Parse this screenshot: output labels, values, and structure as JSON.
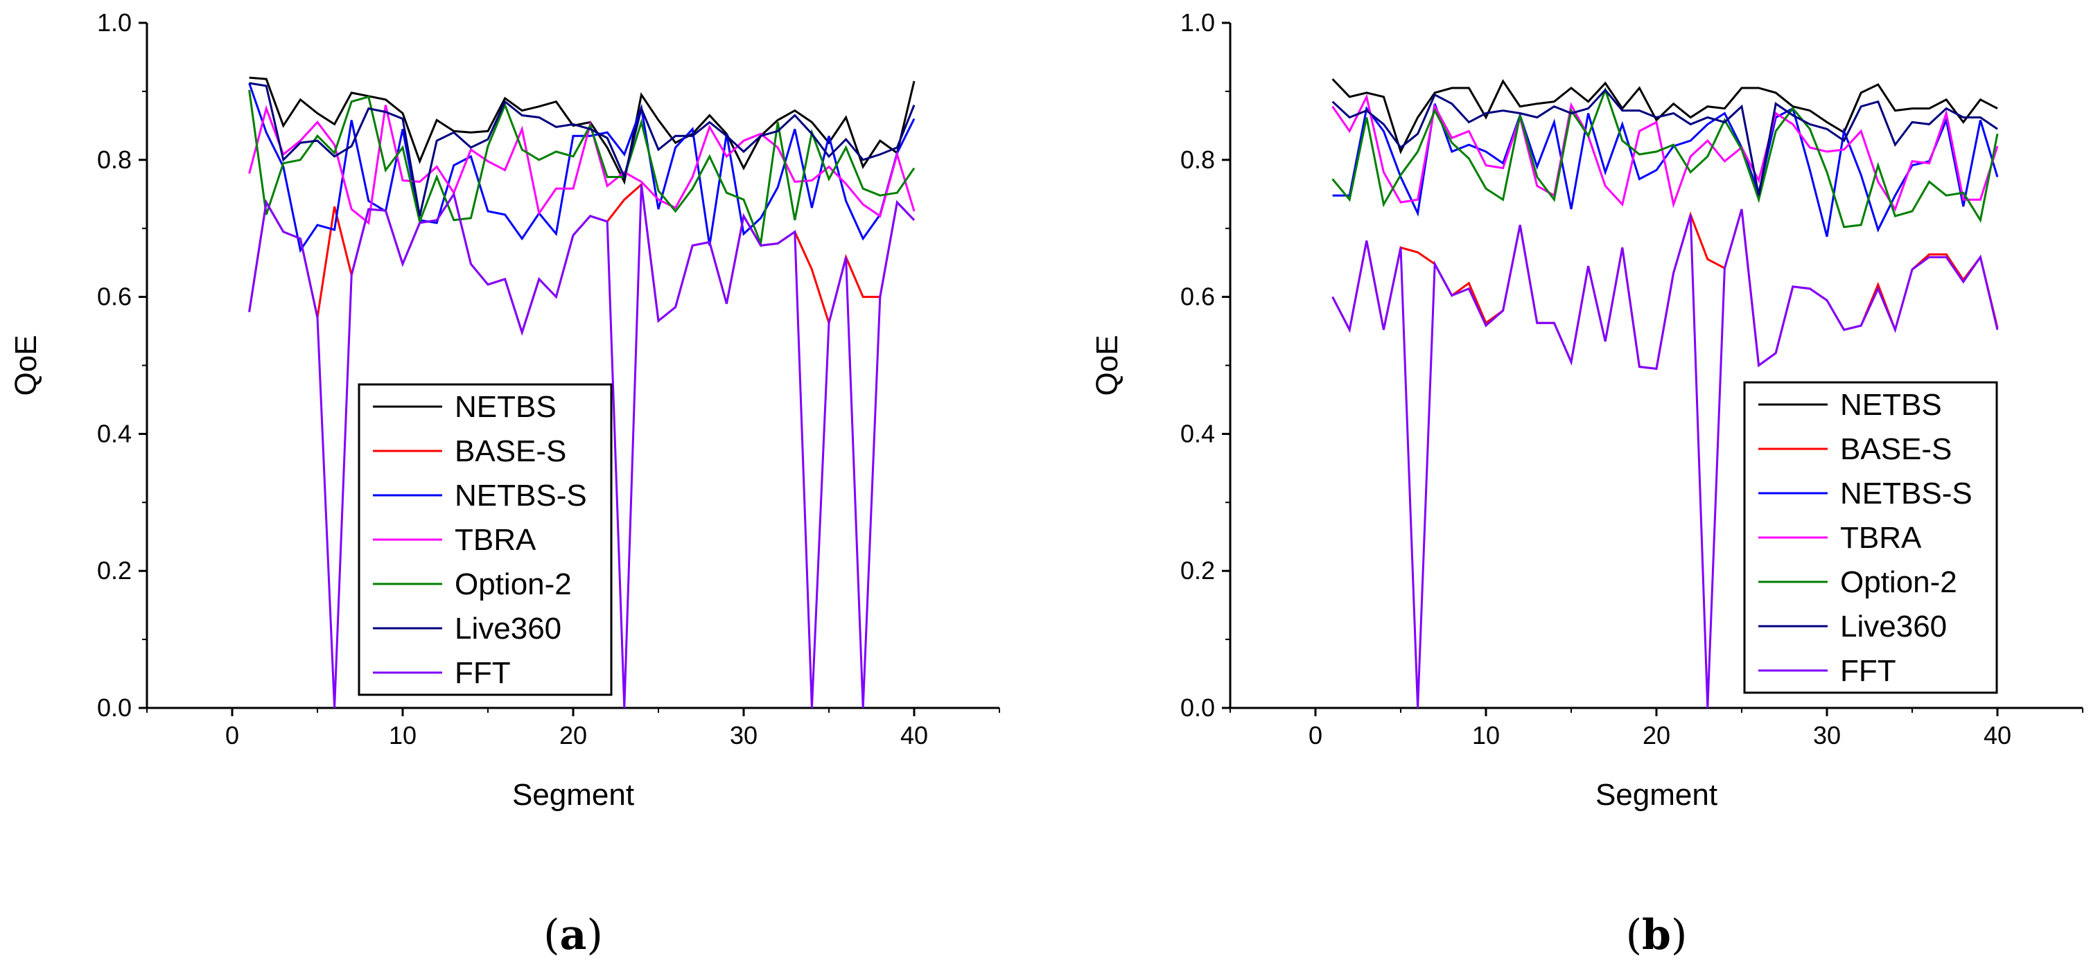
{
  "chart_data": [
    {
      "type": "line",
      "panel_label": "a",
      "xlabel": "Segment",
      "ylabel": "QoE",
      "xlim": [
        -5,
        45
      ],
      "ylim": [
        0.0,
        1.0
      ],
      "xticks": [
        0,
        10,
        20,
        30,
        40
      ],
      "yticks": [
        "0.0",
        "0.2",
        "0.4",
        "0.6",
        "0.8",
        "1.0"
      ],
      "legend_position": "lower-center",
      "x": [
        1,
        2,
        3,
        4,
        5,
        6,
        7,
        8,
        9,
        10,
        11,
        12,
        13,
        14,
        15,
        16,
        17,
        18,
        19,
        20,
        21,
        22,
        23,
        24,
        25,
        26,
        27,
        28,
        29,
        30,
        31,
        32,
        33,
        34,
        35,
        36,
        37,
        38,
        39,
        40
      ],
      "series": [
        {
          "name": "NETBS",
          "color": "#000000",
          "values": [
            0.92,
            0.918,
            0.85,
            0.888,
            0.868,
            0.852,
            0.898,
            0.893,
            0.888,
            0.868,
            0.798,
            0.858,
            0.842,
            0.84,
            0.842,
            0.89,
            0.872,
            0.878,
            0.885,
            0.85,
            0.855,
            0.818,
            0.768,
            0.895,
            0.858,
            0.825,
            0.838,
            0.865,
            0.838,
            0.788,
            0.835,
            0.858,
            0.872,
            0.855,
            0.825,
            0.862,
            0.79,
            0.828,
            0.81,
            0.915
          ]
        },
        {
          "name": "BASE-S",
          "color": "#ff0000",
          "values": [
            0.578,
            0.738,
            0.695,
            0.685,
            0.57,
            0.732,
            0.632,
            0.728,
            0.726,
            0.648,
            0.708,
            0.712,
            0.75,
            0.648,
            0.618,
            0.626,
            0.548,
            0.626,
            0.6,
            0.69,
            0.718,
            0.71,
            0.742,
            0.764,
            0.565,
            0.585,
            0.675,
            0.68,
            0.59,
            0.718,
            0.675,
            0.678,
            0.695,
            0.64,
            0.562,
            0.658,
            0.6,
            0.6,
            0.738,
            0.712
          ]
        },
        {
          "name": "NETBS-S",
          "color": "#0000ff",
          "values": [
            0.912,
            0.84,
            0.79,
            0.668,
            0.705,
            0.698,
            0.858,
            0.74,
            0.725,
            0.845,
            0.712,
            0.708,
            0.792,
            0.805,
            0.725,
            0.72,
            0.685,
            0.722,
            0.692,
            0.835,
            0.835,
            0.84,
            0.808,
            0.876,
            0.728,
            0.818,
            0.845,
            0.675,
            0.838,
            0.692,
            0.715,
            0.76,
            0.845,
            0.73,
            0.835,
            0.74,
            0.685,
            0.72,
            0.81,
            0.86
          ]
        },
        {
          "name": "TBRA",
          "color": "#ff00ff",
          "values": [
            0.78,
            0.875,
            0.808,
            0.828,
            0.855,
            0.822,
            0.728,
            0.708,
            0.88,
            0.77,
            0.768,
            0.79,
            0.752,
            0.815,
            0.798,
            0.785,
            0.845,
            0.722,
            0.758,
            0.758,
            0.852,
            0.762,
            0.782,
            0.768,
            0.742,
            0.73,
            0.775,
            0.848,
            0.805,
            0.828,
            0.838,
            0.818,
            0.768,
            0.77,
            0.79,
            0.765,
            0.735,
            0.718,
            0.808,
            0.725
          ]
        },
        {
          "name": "Option-2",
          "color": "#007f00",
          "values": [
            0.902,
            0.72,
            0.795,
            0.8,
            0.835,
            0.81,
            0.885,
            0.892,
            0.785,
            0.818,
            0.71,
            0.775,
            0.712,
            0.715,
            0.82,
            0.88,
            0.815,
            0.8,
            0.812,
            0.805,
            0.85,
            0.775,
            0.775,
            0.855,
            0.755,
            0.725,
            0.758,
            0.805,
            0.752,
            0.742,
            0.678,
            0.855,
            0.712,
            0.84,
            0.772,
            0.818,
            0.758,
            0.748,
            0.752,
            0.788
          ]
        },
        {
          "name": "Live360",
          "color": "#00007f",
          "values": [
            0.912,
            0.908,
            0.8,
            0.825,
            0.828,
            0.805,
            0.82,
            0.875,
            0.87,
            0.86,
            0.718,
            0.828,
            0.84,
            0.818,
            0.83,
            0.885,
            0.865,
            0.862,
            0.848,
            0.852,
            0.845,
            0.832,
            0.775,
            0.875,
            0.815,
            0.835,
            0.835,
            0.855,
            0.835,
            0.812,
            0.835,
            0.842,
            0.865,
            0.838,
            0.805,
            0.83,
            0.8,
            0.808,
            0.818,
            0.88
          ]
        },
        {
          "name": "FFT",
          "color": "#7f00ff",
          "values": [
            0.578,
            0.738,
            0.695,
            0.685,
            0.57,
            0.0,
            0.632,
            0.728,
            0.726,
            0.648,
            0.708,
            0.712,
            0.75,
            0.648,
            0.618,
            0.626,
            0.548,
            0.626,
            0.6,
            0.69,
            0.718,
            0.71,
            0.0,
            0.764,
            0.565,
            0.585,
            0.675,
            0.68,
            0.59,
            0.718,
            0.675,
            0.678,
            0.695,
            0.0,
            0.562,
            0.658,
            0.0,
            0.6,
            0.738,
            0.712
          ]
        }
      ]
    },
    {
      "type": "line",
      "panel_label": "b",
      "xlabel": "Segment",
      "ylabel": "QoE",
      "xlim": [
        -5,
        45
      ],
      "ylim": [
        0.0,
        1.0
      ],
      "xticks": [
        0,
        10,
        20,
        30,
        40
      ],
      "yticks": [
        "0.0",
        "0.2",
        "0.4",
        "0.6",
        "0.8",
        "1.0"
      ],
      "legend_position": "lower-right",
      "x": [
        1,
        2,
        3,
        4,
        5,
        6,
        7,
        8,
        9,
        10,
        11,
        12,
        13,
        14,
        15,
        16,
        17,
        18,
        19,
        20,
        21,
        22,
        23,
        24,
        25,
        26,
        27,
        28,
        29,
        30,
        31,
        32,
        33,
        34,
        35,
        36,
        37,
        38,
        39,
        40
      ],
      "series": [
        {
          "name": "NETBS",
          "color": "#000000",
          "values": [
            0.918,
            0.892,
            0.898,
            0.892,
            0.812,
            0.862,
            0.898,
            0.905,
            0.905,
            0.862,
            0.915,
            0.878,
            0.882,
            0.885,
            0.905,
            0.885,
            0.912,
            0.875,
            0.905,
            0.858,
            0.882,
            0.862,
            0.878,
            0.875,
            0.905,
            0.905,
            0.898,
            0.878,
            0.872,
            0.855,
            0.84,
            0.898,
            0.91,
            0.872,
            0.875,
            0.875,
            0.888,
            0.855,
            0.888,
            0.875
          ]
        },
        {
          "name": "BASE-S",
          "color": "#ff0000",
          "values": [
            0.6,
            0.552,
            0.682,
            0.552,
            0.672,
            0.665,
            0.648,
            0.602,
            0.62,
            0.562,
            0.58,
            0.705,
            0.562,
            0.562,
            0.505,
            0.645,
            0.535,
            0.672,
            0.498,
            0.495,
            0.635,
            0.72,
            0.655,
            0.642,
            0.728,
            0.5,
            0.518,
            0.615,
            0.612,
            0.595,
            0.552,
            0.558,
            0.618,
            0.552,
            0.64,
            0.662,
            0.662,
            0.625,
            0.658,
            0.555
          ]
        },
        {
          "name": "NETBS-S",
          "color": "#0000ff",
          "values": [
            0.748,
            0.748,
            0.875,
            0.842,
            0.775,
            0.722,
            0.882,
            0.812,
            0.822,
            0.812,
            0.795,
            0.865,
            0.79,
            0.855,
            0.728,
            0.868,
            0.782,
            0.852,
            0.772,
            0.785,
            0.82,
            0.828,
            0.852,
            0.868,
            0.818,
            0.752,
            0.862,
            0.875,
            0.785,
            0.688,
            0.842,
            0.778,
            0.698,
            0.748,
            0.792,
            0.798,
            0.858,
            0.732,
            0.858,
            0.775
          ]
        },
        {
          "name": "TBRA",
          "color": "#ff00ff",
          "values": [
            0.878,
            0.842,
            0.892,
            0.782,
            0.738,
            0.742,
            0.878,
            0.832,
            0.842,
            0.792,
            0.788,
            0.862,
            0.762,
            0.748,
            0.88,
            0.835,
            0.762,
            0.735,
            0.842,
            0.855,
            0.735,
            0.805,
            0.828,
            0.798,
            0.818,
            0.77,
            0.868,
            0.852,
            0.818,
            0.812,
            0.815,
            0.842,
            0.768,
            0.728,
            0.798,
            0.795,
            0.868,
            0.742,
            0.742,
            0.82
          ]
        },
        {
          "name": "Option-2",
          "color": "#007f00",
          "values": [
            0.772,
            0.742,
            0.862,
            0.735,
            0.778,
            0.812,
            0.872,
            0.825,
            0.802,
            0.758,
            0.742,
            0.865,
            0.775,
            0.742,
            0.872,
            0.835,
            0.902,
            0.828,
            0.808,
            0.812,
            0.822,
            0.782,
            0.805,
            0.858,
            0.815,
            0.742,
            0.842,
            0.875,
            0.845,
            0.782,
            0.702,
            0.705,
            0.792,
            0.718,
            0.725,
            0.768,
            0.748,
            0.752,
            0.712,
            0.838
          ]
        },
        {
          "name": "Live360",
          "color": "#00007f",
          "values": [
            0.885,
            0.862,
            0.872,
            0.852,
            0.818,
            0.838,
            0.895,
            0.882,
            0.855,
            0.868,
            0.872,
            0.868,
            0.862,
            0.878,
            0.868,
            0.875,
            0.902,
            0.872,
            0.872,
            0.862,
            0.868,
            0.852,
            0.862,
            0.855,
            0.878,
            0.748,
            0.882,
            0.865,
            0.852,
            0.845,
            0.828,
            0.878,
            0.885,
            0.822,
            0.855,
            0.852,
            0.875,
            0.862,
            0.862,
            0.845
          ]
        },
        {
          "name": "FFT",
          "color": "#7f00ff",
          "values": [
            0.6,
            0.552,
            0.682,
            0.552,
            0.672,
            0.0,
            0.648,
            0.602,
            0.612,
            0.558,
            0.58,
            0.705,
            0.562,
            0.562,
            0.505,
            0.645,
            0.535,
            0.672,
            0.498,
            0.495,
            0.635,
            0.72,
            0.0,
            0.642,
            0.728,
            0.5,
            0.518,
            0.615,
            0.612,
            0.595,
            0.552,
            0.558,
            0.612,
            0.552,
            0.64,
            0.658,
            0.658,
            0.622,
            0.658,
            0.552
          ]
        }
      ]
    }
  ]
}
